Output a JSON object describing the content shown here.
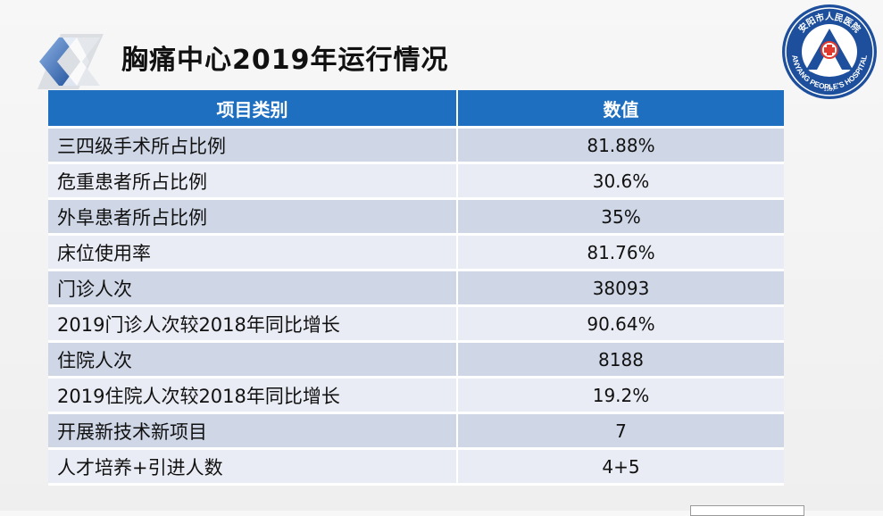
{
  "title": "胸痛中心2019年运行情况",
  "logo": {
    "icon": "hospital-seal-icon",
    "top_text": "安阳市人民医院",
    "bottom_text": "ANYANG PEOPLE'S HOSPITAL",
    "year_text": "1937",
    "colors": {
      "primary": "#1d4f9c",
      "accent": "#e23a2e"
    }
  },
  "table": {
    "headers": [
      "项目类别",
      "数值"
    ],
    "rows": [
      {
        "label": "三四级手术所占比例",
        "value": "81.88%"
      },
      {
        "label": "危重患者所占比例",
        "value": "30.6%"
      },
      {
        "label": "外阜患者所占比例",
        "value": "35%"
      },
      {
        "label": "床位使用率",
        "value": "81.76%"
      },
      {
        "label": "门诊人次",
        "value": "38093"
      },
      {
        "label": "2019门诊人次较2018年同比增长",
        "value": "90.64%"
      },
      {
        "label": "住院人次",
        "value": "8188"
      },
      {
        "label": "2019住院人次较2018年同比增长",
        "value": "19.2%"
      },
      {
        "label": "开展新技术新项目",
        "value": "7"
      },
      {
        "label": "人才培养+引进人数",
        "value": "4+5"
      }
    ]
  },
  "colors": {
    "header_bg": "#1f6fc0",
    "row_odd": "#cfd6e6",
    "row_even": "#e9ecf4"
  }
}
